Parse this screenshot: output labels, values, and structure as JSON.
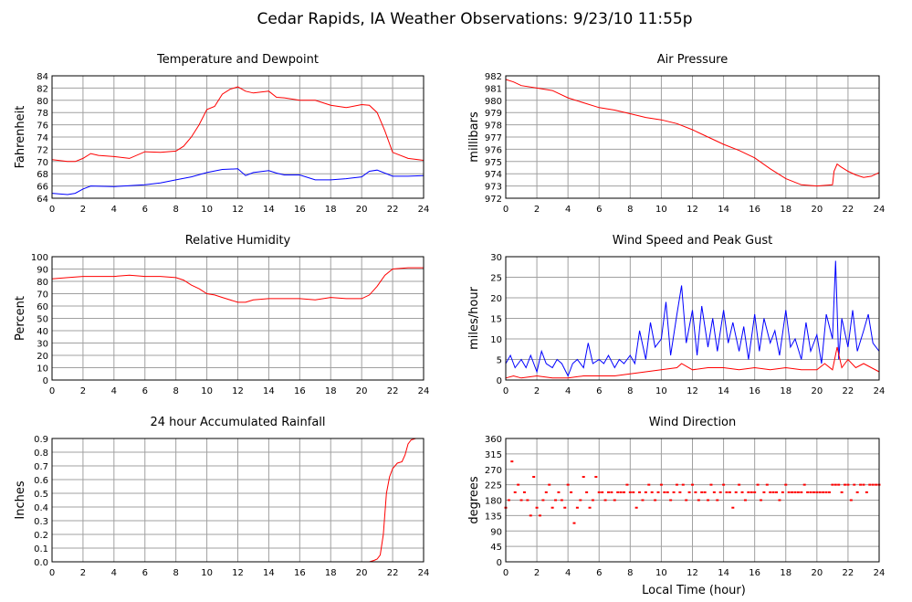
{
  "title": "Cedar Rapids, IA Weather Observations: 9/23/10 11:55p",
  "xlabel": "Local Time (hour)",
  "colors": {
    "primary_line": "#ff0000",
    "secondary_line": "#0000ff",
    "grid": "#a0a0a0",
    "frame": "#000000"
  },
  "x_ticks": [
    "0",
    "2",
    "4",
    "6",
    "8",
    "10",
    "12",
    "14",
    "16",
    "18",
    "20",
    "22",
    "24"
  ],
  "chart_data": [
    {
      "type": "line",
      "title": "Temperature and Dewpoint",
      "ylabel": "Fahrenheit",
      "xlim": [
        0,
        24
      ],
      "ylim": [
        64,
        84
      ],
      "y_ticks": [
        "64",
        "66",
        "68",
        "70",
        "72",
        "74",
        "76",
        "78",
        "80",
        "82",
        "84"
      ],
      "grid": true,
      "series": [
        {
          "color": "#ff0000",
          "x": [
            0,
            1,
            1.5,
            2,
            2.5,
            3,
            4,
            5,
            6,
            7,
            8,
            8.5,
            9,
            9.5,
            10,
            10.5,
            11,
            11.5,
            12,
            12.5,
            13,
            14,
            14.5,
            15,
            16,
            17,
            18,
            19,
            20,
            20.5,
            21,
            21.5,
            22,
            23,
            24
          ],
          "y": [
            70.3,
            70,
            70,
            70.5,
            71.3,
            71,
            70.8,
            70.5,
            71.6,
            71.5,
            71.7,
            72.5,
            74,
            76,
            78.5,
            79,
            81,
            81.8,
            82.2,
            81.5,
            81.2,
            81.5,
            80.5,
            80.4,
            80,
            80,
            79.2,
            78.8,
            79.3,
            79.2,
            78,
            75,
            71.5,
            70.5,
            70.2
          ]
        },
        {
          "color": "#0000ff",
          "x": [
            0,
            1,
            1.5,
            2,
            2.5,
            4,
            6,
            7,
            8,
            9,
            10,
            11,
            12,
            12.5,
            13,
            14,
            14.5,
            15,
            16,
            17,
            18,
            19,
            20,
            20.5,
            21,
            22,
            23,
            24
          ],
          "y": [
            64.8,
            64.6,
            64.8,
            65.5,
            66,
            65.9,
            66.2,
            66.5,
            67,
            67.5,
            68.2,
            68.7,
            68.8,
            67.7,
            68.2,
            68.5,
            68.1,
            67.8,
            67.8,
            67,
            67,
            67.2,
            67.5,
            68.4,
            68.6,
            67.6,
            67.6,
            67.7
          ]
        }
      ]
    },
    {
      "type": "line",
      "title": "Air Pressure",
      "ylabel": "millibars",
      "xlim": [
        0,
        24
      ],
      "ylim": [
        972,
        982
      ],
      "y_ticks": [
        "972",
        "973",
        "974",
        "975",
        "976",
        "977",
        "978",
        "979",
        "980",
        "981",
        "982"
      ],
      "grid": true,
      "series": [
        {
          "color": "#ff0000",
          "x": [
            0,
            0.5,
            1,
            2,
            3,
            4,
            5,
            6,
            7,
            8,
            9,
            10,
            11,
            12,
            13,
            14,
            15,
            16,
            17,
            18,
            19,
            20,
            21,
            21.1,
            21.3,
            21.5,
            22,
            22.5,
            23,
            23.5,
            24
          ],
          "y": [
            981.7,
            981.5,
            981.2,
            981,
            980.8,
            980.2,
            979.8,
            979.4,
            979.2,
            978.9,
            978.6,
            978.4,
            978.1,
            977.6,
            977,
            976.4,
            975.9,
            975.3,
            974.4,
            973.6,
            973.1,
            973.0,
            973.1,
            974.2,
            974.8,
            974.6,
            974.2,
            973.9,
            973.7,
            973.8,
            974.1
          ]
        }
      ]
    },
    {
      "type": "line",
      "title": "Relative Humidity",
      "ylabel": "Percent",
      "xlim": [
        0,
        24
      ],
      "ylim": [
        0,
        100
      ],
      "y_ticks": [
        "0",
        "10",
        "20",
        "30",
        "40",
        "50",
        "60",
        "70",
        "80",
        "90",
        "100"
      ],
      "grid": true,
      "series": [
        {
          "color": "#ff0000",
          "x": [
            0,
            1,
            2,
            3,
            4,
            5,
            6,
            7,
            8,
            8.5,
            9,
            9.5,
            10,
            10.5,
            11,
            12,
            12.5,
            13,
            14,
            15,
            16,
            17,
            18,
            19,
            20,
            20.5,
            21,
            21.5,
            22,
            23,
            24
          ],
          "y": [
            82,
            83,
            84,
            84,
            84,
            85,
            84,
            84,
            83,
            81,
            77,
            74,
            70,
            69,
            67,
            63,
            63,
            65,
            66,
            66,
            66,
            65,
            67,
            66,
            66,
            69,
            76,
            85,
            90,
            91,
            91
          ]
        }
      ]
    },
    {
      "type": "line",
      "title": "Wind Speed and Peak Gust",
      "ylabel": "miles/hour",
      "xlim": [
        0,
        24
      ],
      "ylim": [
        0,
        30
      ],
      "y_ticks": [
        "0",
        "5",
        "10",
        "15",
        "20",
        "25",
        "30"
      ],
      "grid": true,
      "series": [
        {
          "color": "#0000ff",
          "x": [
            0,
            0.3,
            0.6,
            1,
            1.3,
            1.6,
            2,
            2.3,
            2.6,
            3,
            3.3,
            3.6,
            4,
            4.3,
            4.6,
            5,
            5.3,
            5.6,
            6,
            6.3,
            6.6,
            7,
            7.3,
            7.6,
            8,
            8.3,
            8.6,
            9,
            9.3,
            9.6,
            10,
            10.3,
            10.6,
            11,
            11.3,
            11.6,
            12,
            12.3,
            12.6,
            13,
            13.3,
            13.6,
            14,
            14.3,
            14.6,
            15,
            15.3,
            15.6,
            16,
            16.3,
            16.6,
            17,
            17.3,
            17.6,
            18,
            18.3,
            18.6,
            19,
            19.3,
            19.6,
            20,
            20.3,
            20.6,
            21,
            21.2,
            21.4,
            21.6,
            22,
            22.3,
            22.6,
            23,
            23.3,
            23.6,
            24
          ],
          "y": [
            4,
            6,
            3,
            5,
            3,
            6,
            2,
            7,
            4,
            3,
            5,
            4,
            1,
            4,
            5,
            3,
            9,
            4,
            5,
            4,
            6,
            3,
            5,
            4,
            6,
            4,
            12,
            5,
            14,
            8,
            10,
            19,
            6,
            16,
            23,
            9,
            17,
            6,
            18,
            8,
            15,
            7,
            17,
            9,
            14,
            7,
            13,
            5,
            16,
            7,
            15,
            9,
            12,
            6,
            17,
            8,
            10,
            5,
            14,
            7,
            11,
            4,
            16,
            10,
            29,
            5,
            15,
            8,
            17,
            7,
            12,
            16,
            9,
            7
          ]
        },
        {
          "color": "#ff0000",
          "x": [
            0,
            0.5,
            1,
            2,
            3,
            4,
            5,
            6,
            7,
            8,
            9,
            10,
            11,
            11.3,
            12,
            13,
            14,
            15,
            16,
            17,
            18,
            19,
            20,
            20.5,
            21,
            21.3,
            21.6,
            22,
            22.5,
            23,
            24
          ],
          "y": [
            0.5,
            1,
            0.5,
            1,
            0.5,
            0.5,
            1,
            1,
            1,
            1.5,
            2,
            2.5,
            3,
            4,
            2.5,
            3,
            3,
            2.5,
            3,
            2.5,
            3,
            2.5,
            2.5,
            4,
            2.5,
            8,
            3,
            5,
            3,
            4,
            2
          ]
        }
      ]
    },
    {
      "type": "line",
      "title": "24 hour Accumulated Rainfall",
      "ylabel": "Inches",
      "xlim": [
        0,
        24
      ],
      "ylim": [
        0,
        0.9
      ],
      "y_ticks": [
        "0.0",
        "0.1",
        "0.2",
        "0.3",
        "0.4",
        "0.5",
        "0.6",
        "0.7",
        "0.8",
        "0.9"
      ],
      "grid": true,
      "series": [
        {
          "color": "#ff0000",
          "x": [
            0,
            20.5,
            20.8,
            21,
            21.2,
            21.4,
            21.6,
            21.8,
            22,
            22.3,
            22.6,
            22.8,
            23,
            23.2,
            23.5,
            24
          ],
          "y": [
            0,
            0,
            0.01,
            0.02,
            0.05,
            0.2,
            0.5,
            0.62,
            0.68,
            0.72,
            0.73,
            0.78,
            0.86,
            0.89,
            0.9,
            0.9
          ]
        }
      ]
    },
    {
      "type": "scatter",
      "title": "Wind Direction",
      "ylabel": "degrees",
      "xlim": [
        0,
        24
      ],
      "ylim": [
        0,
        360
      ],
      "y_ticks": [
        "0",
        "45",
        "90",
        "135",
        "180",
        "225",
        "270",
        "315",
        "360"
      ],
      "grid": true,
      "series": [
        {
          "color": "#ff0000",
          "x": [
            0,
            0.2,
            0.4,
            0.6,
            0.8,
            1,
            1.2,
            1.4,
            1.6,
            1.8,
            2,
            2.2,
            2.4,
            2.6,
            2.8,
            3,
            3.2,
            3.4,
            3.6,
            3.8,
            4,
            4.2,
            4.4,
            4.6,
            4.8,
            5,
            5.2,
            5.4,
            5.6,
            5.8,
            6,
            6.2,
            6.4,
            6.6,
            6.8,
            7,
            7.2,
            7.4,
            7.6,
            7.8,
            8,
            8.2,
            8.4,
            8.6,
            8.8,
            9,
            9.2,
            9.4,
            9.6,
            9.8,
            10,
            10.2,
            10.4,
            10.6,
            10.8,
            11,
            11.2,
            11.4,
            11.6,
            11.8,
            12,
            12.2,
            12.4,
            12.6,
            12.8,
            13,
            13.2,
            13.4,
            13.6,
            13.8,
            14,
            14.2,
            14.4,
            14.6,
            14.8,
            15,
            15.2,
            15.4,
            15.6,
            15.8,
            16,
            16.2,
            16.4,
            16.6,
            16.8,
            17,
            17.2,
            17.4,
            17.6,
            17.8,
            18,
            18.2,
            18.4,
            18.6,
            18.8,
            19,
            19.2,
            19.4,
            19.6,
            19.8,
            20,
            20.2,
            20.4,
            20.6,
            20.8,
            21,
            21.2,
            21.4,
            21.6,
            21.8,
            22,
            22.2,
            22.4,
            22.6,
            22.8,
            23,
            23.2,
            23.4,
            23.6,
            23.8,
            24
          ],
          "y": [
            158,
            180,
            293,
            203,
            225,
            180,
            203,
            180,
            135,
            248,
            158,
            135,
            180,
            203,
            225,
            158,
            180,
            203,
            180,
            158,
            225,
            203,
            113,
            158,
            180,
            248,
            203,
            158,
            180,
            248,
            203,
            203,
            180,
            203,
            203,
            180,
            203,
            203,
            203,
            225,
            203,
            203,
            158,
            203,
            180,
            203,
            225,
            203,
            180,
            203,
            225,
            203,
            203,
            180,
            203,
            225,
            203,
            225,
            180,
            203,
            225,
            203,
            180,
            203,
            203,
            180,
            225,
            203,
            180,
            203,
            225,
            203,
            203,
            158,
            203,
            225,
            203,
            180,
            203,
            203,
            203,
            225,
            180,
            203,
            225,
            203,
            203,
            203,
            180,
            203,
            225,
            203,
            203,
            203,
            203,
            203,
            225,
            203,
            203,
            203,
            203,
            203,
            203,
            203,
            203,
            225,
            225,
            225,
            203,
            225,
            225,
            180,
            225,
            203,
            225,
            225,
            203,
            225,
            225,
            225,
            225
          ]
        }
      ]
    }
  ]
}
